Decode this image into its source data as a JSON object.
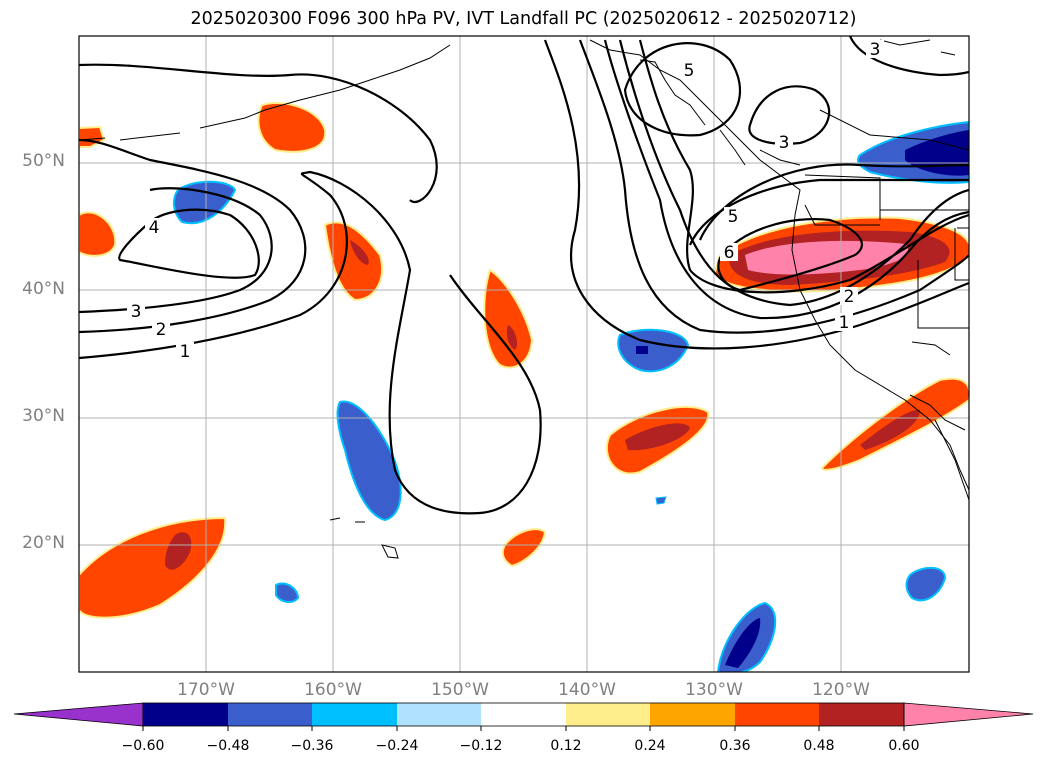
{
  "title": "2025020300 F096 300 hPa PV, IVT Landfall PC (2025020612 - 2025020712)",
  "lat_labels": [
    "50°N",
    "40°N",
    "30°N",
    "20°N"
  ],
  "lon_labels": [
    "170°W",
    "160°W",
    "150°W",
    "140°W",
    "130°W",
    "120°W"
  ],
  "contour_labels": [
    "1",
    "2",
    "3",
    "4",
    "5",
    "6",
    "5",
    "3",
    "3",
    "2",
    "1"
  ],
  "colorbar": {
    "tick_labels": [
      "−0.60",
      "−0.48",
      "−0.36",
      "−0.24",
      "−0.12",
      "0.12",
      "0.24",
      "0.36",
      "0.48",
      "0.60"
    ],
    "colors": [
      "#9932cc",
      "#00008b",
      "#3a5fcd",
      "#00bfff",
      "#b0e2ff",
      "#ffffff",
      "#ffec8b",
      "#ffa500",
      "#ff4500",
      "#b22222",
      "#ff82ab"
    ]
  }
}
